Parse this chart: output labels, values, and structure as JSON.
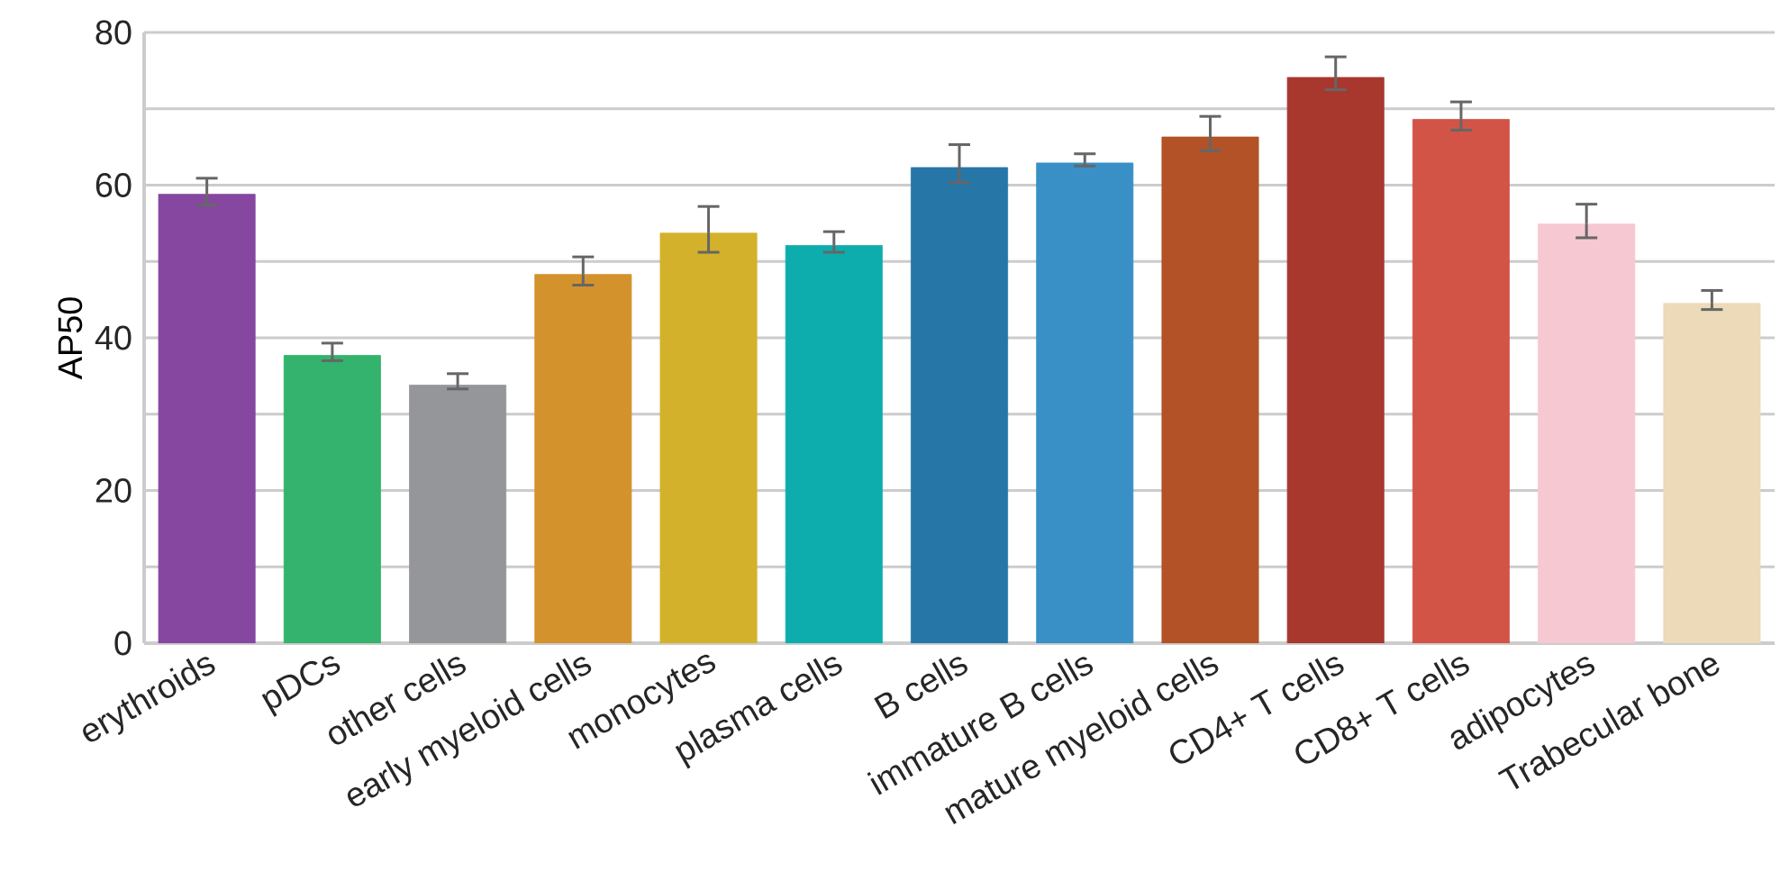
{
  "chart_data": {
    "type": "bar",
    "ylabel": "AP50",
    "categories": [
      "erythroids",
      "pDCs",
      "other cells",
      "early myeloid cells",
      "monocytes",
      "plasma cells",
      "B cells",
      "immature B cells",
      "mature myeloid cells",
      "CD4+ T cells",
      "CD8+ T cells",
      "adipocytes",
      "Trabecular bone"
    ],
    "values": [
      58.8,
      37.7,
      33.8,
      48.3,
      53.7,
      52.1,
      62.3,
      62.9,
      66.3,
      74.1,
      68.6,
      54.9,
      44.5
    ],
    "errors": [
      [
        57.4,
        60.9
      ],
      [
        37.0,
        39.3
      ],
      [
        33.3,
        35.3
      ],
      [
        46.9,
        50.6
      ],
      [
        51.2,
        57.2
      ],
      [
        51.2,
        53.9
      ],
      [
        60.3,
        65.3
      ],
      [
        62.5,
        64.1
      ],
      [
        64.5,
        69.0
      ],
      [
        72.5,
        76.8
      ],
      [
        67.2,
        70.9
      ],
      [
        53.1,
        57.5
      ],
      [
        43.7,
        46.2
      ]
    ],
    "colors": [
      "#8547a0",
      "#33b36d",
      "#95969a",
      "#d3922b",
      "#d4b12b",
      "#0eadad",
      "#2677a7",
      "#3990c6",
      "#b25226",
      "#a8372e",
      "#d25447",
      "#f6c8d2",
      "#ecdab8"
    ],
    "ylim": [
      0,
      80
    ],
    "yticks": [
      0,
      {
        "value": 10,
        "label": null
      },
      20,
      {
        "value": 30,
        "label": null
      },
      40,
      {
        "value": 50,
        "label": null
      },
      60,
      {
        "value": 70,
        "label": null
      },
      80
    ],
    "grid": "y"
  }
}
